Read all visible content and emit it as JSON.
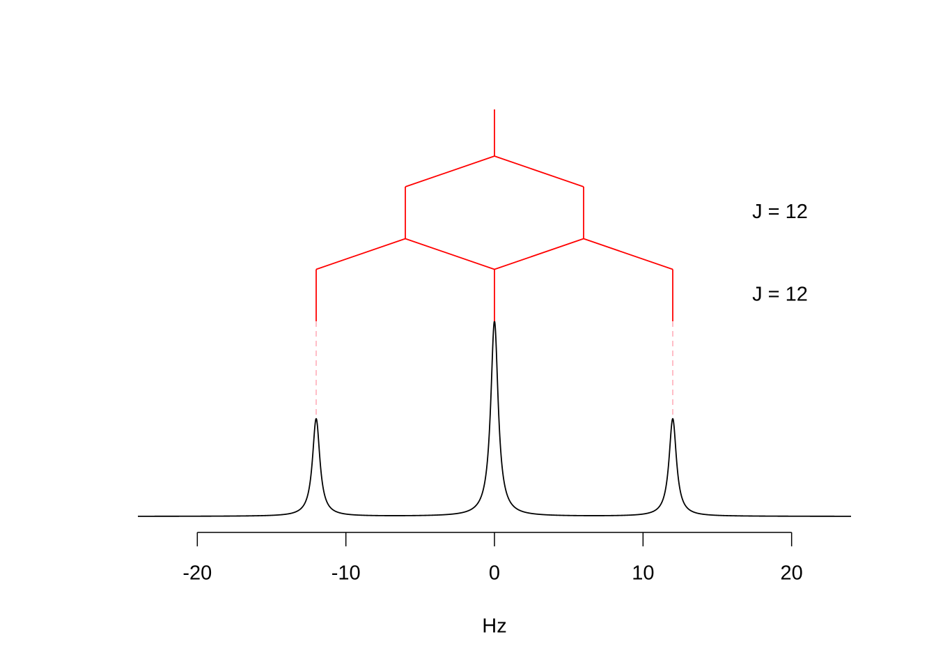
{
  "chart_data": {
    "type": "multiplet",
    "xlabel": "Hz",
    "xlim": [
      -24,
      24
    ],
    "xticks": [
      -20,
      -10,
      0,
      10,
      20
    ],
    "ylim": [
      0,
      2
    ],
    "peaks": {
      "x": [
        -12,
        0,
        12
      ],
      "values": [
        1,
        2,
        1
      ]
    },
    "peak_width": 0.3,
    "splittings": [
      {
        "label": "J = 12",
        "J": 12
      },
      {
        "label": "J = 12",
        "J": 12
      }
    ],
    "color": "#000000",
    "tree_color": "#ff0000",
    "guide_color": "#ffb6c1"
  }
}
